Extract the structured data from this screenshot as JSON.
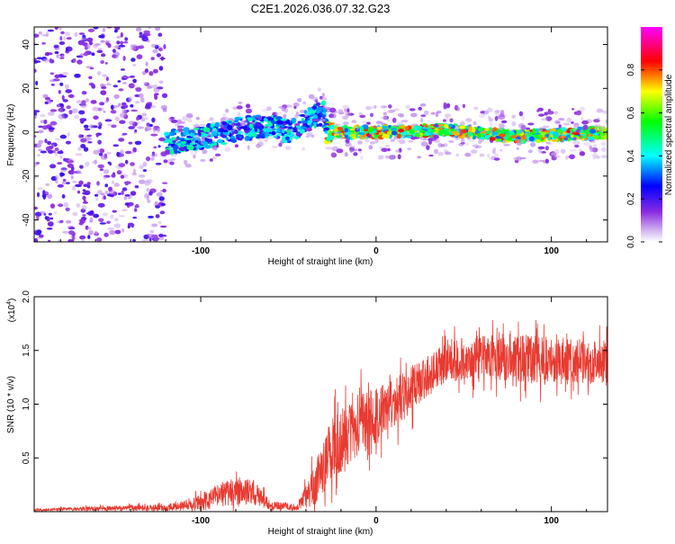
{
  "title": "C2E1.2026.036.07.32.G23",
  "chart_data": [
    {
      "type": "heatmap",
      "xlabel": "Height of straight line (km)",
      "ylabel": "Frequency (Hz)",
      "xlim": [
        -195,
        132
      ],
      "ylim": [
        -50,
        48
      ],
      "xticks": [
        -100,
        0,
        100
      ],
      "yticks": [
        -40,
        -20,
        0,
        20,
        40
      ],
      "trace": [
        {
          "x": -170,
          "f": -6
        },
        {
          "x": -150,
          "f": -6
        },
        {
          "x": -130,
          "f": -5
        },
        {
          "x": -110,
          "f": -4
        },
        {
          "x": -90,
          "f": -1
        },
        {
          "x": -75,
          "f": 2
        },
        {
          "x": -60,
          "f": 3
        },
        {
          "x": -50,
          "f": 0
        },
        {
          "x": -40,
          "f": 5
        },
        {
          "x": -30,
          "f": 9
        },
        {
          "x": -28,
          "f": 0
        },
        {
          "x": 0,
          "f": 0
        },
        {
          "x": 40,
          "f": 1
        },
        {
          "x": 80,
          "f": -2
        },
        {
          "x": 132,
          "f": 0
        }
      ],
      "colorbar": {
        "label": "Normalized spectral amplitude",
        "range": [
          0,
          1
        ],
        "ticks": [
          "0.0",
          "0.2",
          "0.4",
          "0.6",
          "0.8"
        ],
        "colors": [
          "#ffffff",
          "#8a2be2",
          "#0000ff",
          "#00ffff",
          "#00ff00",
          "#ffff00",
          "#ff0000",
          "#ff00ff"
        ]
      }
    },
    {
      "type": "line",
      "xlabel": "Height of straight line (km)",
      "ylabel": "SNR (10 * v/v)",
      "multiplier": "(x10",
      "multiplier_exp": "4",
      "multiplier_close": ")",
      "xlim": [
        -195,
        132
      ],
      "ylim": [
        0,
        20000
      ],
      "xticks": [
        -100,
        0,
        100
      ],
      "yticks": [
        "0.5",
        "1.0",
        "1.5",
        "2.0"
      ],
      "color": "#e83a30",
      "envelope": [
        {
          "x": -195,
          "mean": 150,
          "amp": 200
        },
        {
          "x": -160,
          "mean": 300,
          "amp": 400
        },
        {
          "x": -120,
          "mean": 400,
          "amp": 600
        },
        {
          "x": -100,
          "mean": 800,
          "amp": 1500
        },
        {
          "x": -85,
          "mean": 1800,
          "amp": 2500
        },
        {
          "x": -70,
          "mean": 1800,
          "amp": 2500
        },
        {
          "x": -60,
          "mean": 600,
          "amp": 800
        },
        {
          "x": -45,
          "mean": 400,
          "amp": 600
        },
        {
          "x": -35,
          "mean": 2500,
          "amp": 4000
        },
        {
          "x": -25,
          "mean": 6000,
          "amp": 6000
        },
        {
          "x": -10,
          "mean": 8000,
          "amp": 6000
        },
        {
          "x": 10,
          "mean": 10000,
          "amp": 5000
        },
        {
          "x": 25,
          "mean": 12000,
          "amp": 4000
        },
        {
          "x": 40,
          "mean": 14000,
          "amp": 4000
        },
        {
          "x": 70,
          "mean": 14500,
          "amp": 4500
        },
        {
          "x": 100,
          "mean": 14000,
          "amp": 4500
        },
        {
          "x": 132,
          "mean": 14000,
          "amp": 4000
        }
      ]
    }
  ]
}
